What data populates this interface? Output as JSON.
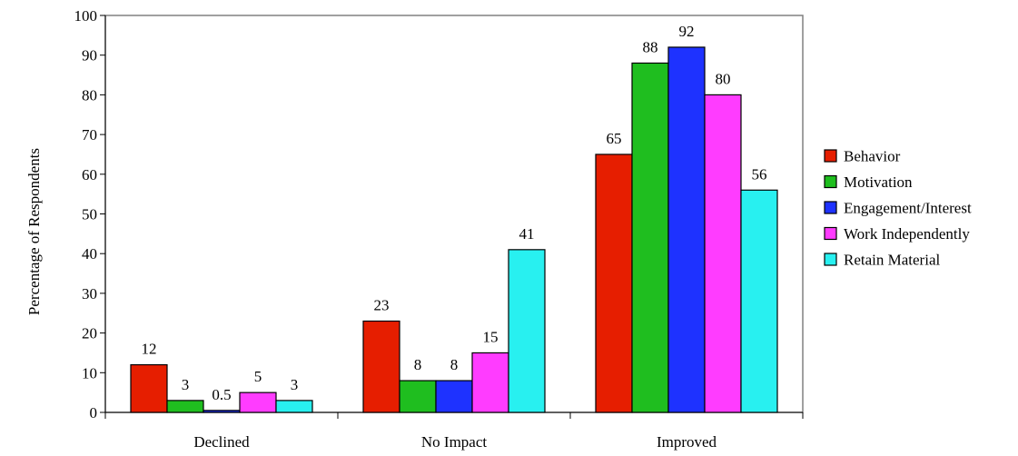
{
  "chart_data": {
    "type": "bar",
    "title": "",
    "xlabel": "",
    "ylabel": "Percentage of Respondents",
    "ylim": [
      0,
      100
    ],
    "yticks": [
      0,
      10,
      20,
      30,
      40,
      50,
      60,
      70,
      80,
      90,
      100
    ],
    "grid": false,
    "legend_position": "right",
    "categories": [
      "Declined",
      "No Impact",
      "Improved"
    ],
    "series": [
      {
        "name": "Behavior",
        "color": "#e61e00",
        "values": [
          12,
          23,
          65
        ],
        "labels": [
          "12",
          "23",
          "65"
        ]
      },
      {
        "name": "Motivation",
        "color": "#1fbe1f",
        "values": [
          3,
          8,
          88
        ],
        "labels": [
          "3",
          "8",
          "88"
        ]
      },
      {
        "name": "Engagement/Interest",
        "color": "#1e32ff",
        "values": [
          0.5,
          8,
          92
        ],
        "labels": [
          "0.5",
          "8",
          "92"
        ]
      },
      {
        "name": "Work Independently",
        "color": "#ff3cff",
        "values": [
          5,
          15,
          80
        ],
        "labels": [
          "5",
          "15",
          "80"
        ]
      },
      {
        "name": "Retain Material",
        "color": "#28f0f0",
        "values": [
          3,
          41,
          56
        ],
        "labels": [
          "3",
          "41",
          "56"
        ]
      }
    ]
  }
}
